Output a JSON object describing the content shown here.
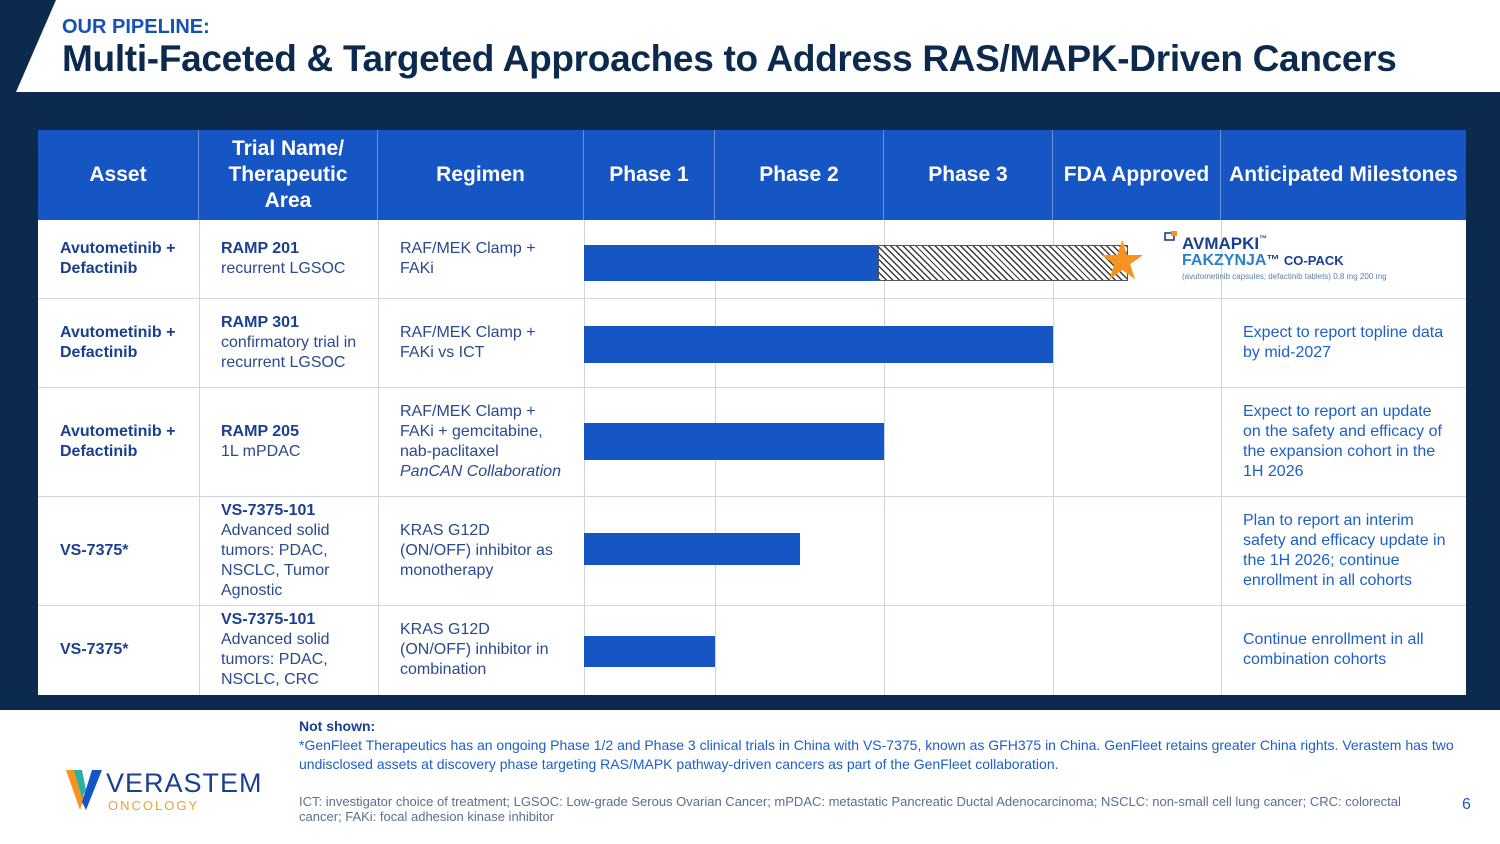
{
  "header": {
    "kicker": "OUR PIPELINE:",
    "title": "Multi-Faceted & Targeted Approaches to Address RAS/MAPK-Driven Cancers"
  },
  "table": {
    "columns": [
      "Asset",
      "Trial Name/ Therapeutic Area",
      "Regimen",
      "Phase 1",
      "Phase 2",
      "Phase 3",
      "FDA Approved",
      "Anticipated Milestones"
    ],
    "rows": [
      {
        "asset": "Avutometinib + Defactinib",
        "trial_name": "RAMP 201",
        "trial_desc": "recurrent LGSOC",
        "regimen": "RAF/MEK Clamp + FAKi",
        "regimen_italic": "",
        "milestone": "",
        "progress_phase": 2.0,
        "approved": true
      },
      {
        "asset": "Avutometinib + Defactinib",
        "trial_name": "RAMP 301",
        "trial_desc": "confirmatory trial in recurrent LGSOC",
        "regimen": "RAF/MEK Clamp + FAKi vs ICT",
        "regimen_italic": "",
        "milestone": "Expect to report topline data by mid-2027",
        "progress_phase": 3.0,
        "approved": false
      },
      {
        "asset": "Avutometinib + Defactinib",
        "trial_name": "RAMP 205",
        "trial_desc": "1L mPDAC",
        "regimen": "RAF/MEK Clamp + FAKi + gemcitabine, nab-paclitaxel",
        "regimen_italic": "PanCAN Collaboration",
        "milestone": "Expect to report an update on the safety and efficacy of the expansion cohort in the 1H 2026",
        "progress_phase": 2.0,
        "approved": false
      },
      {
        "asset": "VS-7375*",
        "trial_name": "VS-7375-101",
        "trial_desc": "Advanced solid tumors: PDAC, NSCLC, Tumor Agnostic",
        "regimen": "KRAS G12D (ON/OFF) inhibitor as monotherapy",
        "regimen_italic": "",
        "milestone": "Plan to report an interim safety and efficacy update in the 1H 2026; continue enrollment in all cohorts",
        "progress_phase": 1.5,
        "approved": false
      },
      {
        "asset": "VS-7375*",
        "trial_name": "VS-7375-101",
        "trial_desc": "Advanced solid tumors: PDAC, NSCLC, CRC",
        "regimen": "KRAS G12D (ON/OFF) inhibitor in combination",
        "regimen_italic": "",
        "milestone": "Continue enrollment in all combination cohorts",
        "progress_phase": 1.0,
        "approved": false
      }
    ],
    "approved_product": {
      "line1": "AVMAPKI",
      "line2": "FAKZYNJA",
      "line2_suffix": "CO-PACK",
      "fineprint": "(avutometinib capsules; defactinib tablets) 0.8 mg 200 mg"
    }
  },
  "footer": {
    "not_shown_label": "Not shown:",
    "note": "*GenFleet Therapeutics has an ongoing Phase 1/2 and Phase 3 clinical trials in China with VS-7375, known as GFH375 in China. GenFleet retains greater China rights. Verastem has two undisclosed assets at discovery phase targeting RAS/MAPK pathway-driven cancers as part of the GenFleet collaboration.",
    "abbreviations": "ICT: investigator choice of treatment; LGSOC: Low-grade Serous Ovarian Cancer; mPDAC: metastatic Pancreatic Ductal Adenocarcinoma; NSCLC: non-small cell lung cancer; CRC: colorectal cancer; FAKi: focal adhesion kinase inhibitor",
    "page_number": "6",
    "logo_name": "VERASTEM",
    "logo_sub": "ONCOLOGY"
  },
  "colors": {
    "navy": "#0c2a4d",
    "blue": "#1655c4",
    "orange": "#f7931e"
  }
}
